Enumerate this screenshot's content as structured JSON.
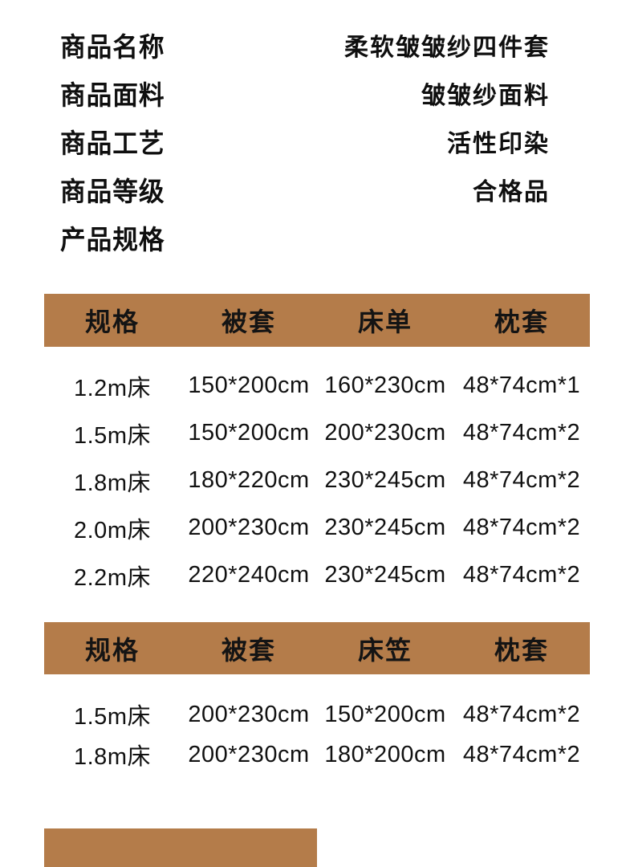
{
  "colors": {
    "accent_brown": "#b47c4a",
    "text": "#0f0f0f",
    "background": "#ffffff"
  },
  "product_info": {
    "items": [
      {
        "label": "商品名称",
        "value": "柔软皱皱纱四件套"
      },
      {
        "label": "商品面料",
        "value": "皱皱纱面料"
      },
      {
        "label": "商品工艺",
        "value": "活性印染"
      },
      {
        "label": "商品等级",
        "value": "合格品"
      },
      {
        "label": "产品规格",
        "value": ""
      }
    ]
  },
  "sheet_set_table": {
    "headers": [
      "规格",
      "被套",
      "床单",
      "枕套"
    ],
    "rows": [
      [
        "1.2m床",
        "150*200cm",
        "160*230cm",
        "48*74cm*1"
      ],
      [
        "1.5m床",
        "150*200cm",
        "200*230cm",
        "48*74cm*2"
      ],
      [
        "1.8m床",
        "180*220cm",
        "230*245cm",
        "48*74cm*2"
      ],
      [
        "2.0m床",
        "200*230cm",
        "230*245cm",
        "48*74cm*2"
      ],
      [
        "2.2m床",
        "220*240cm",
        "230*245cm",
        "48*74cm*2"
      ]
    ]
  },
  "fitted_sheet_table": {
    "headers": [
      "规格",
      "被套",
      "床笠",
      "枕套"
    ],
    "rows": [
      [
        "1.5m床",
        "200*230cm",
        "150*200cm",
        "48*74cm*2"
      ],
      [
        "1.8m床",
        "200*230cm",
        "180*200cm",
        "48*74cm*2"
      ]
    ]
  }
}
